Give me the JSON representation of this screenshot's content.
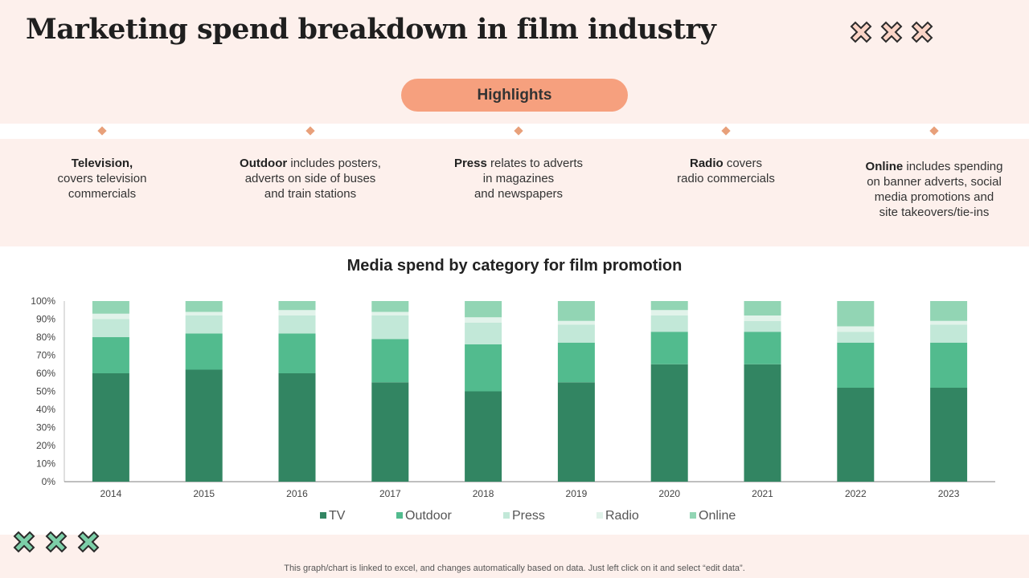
{
  "title": "Marketing spend breakdown in film industry",
  "highlights_label": "Highlights",
  "highlights": [
    {
      "bold": "Television,",
      "text": "covers television commercials",
      "lines": [
        "covers television",
        "commercials"
      ]
    },
    {
      "bold": "Outdoor",
      "text": "includes posters, adverts on side of buses and train stations",
      "lines": [
        "adverts on side of buses",
        "and train stations"
      ],
      "inline": " includes posters,"
    },
    {
      "bold": "Press",
      "inline": " relates to adverts",
      "lines": [
        "in magazines",
        "and newspapers"
      ]
    },
    {
      "bold": "Radio",
      "inline": " covers",
      "lines": [
        "radio commercials"
      ]
    },
    {
      "bold": "Online",
      "inline": " includes spending",
      "lines": [
        "on banner adverts, social",
        "media promotions and",
        "site takeovers/tie-ins"
      ]
    }
  ],
  "colors": {
    "TV": "#328562",
    "Outdoor": "#52bb8e",
    "Press": "#c2e8d8",
    "Radio": "#e1f3ea",
    "Online": "#92d5b4",
    "accent": "#f6a07e",
    "band": "#fdf0ec"
  },
  "chart_data": {
    "type": "bar",
    "stacked": true,
    "title": "Media spend by category for film promotion",
    "categories": [
      "2014",
      "2015",
      "2016",
      "2017",
      "2018",
      "2019",
      "2020",
      "2021",
      "2022",
      "2023"
    ],
    "series": [
      {
        "name": "TV",
        "values": [
          60,
          62,
          60,
          55,
          50,
          55,
          65,
          65,
          52,
          52
        ]
      },
      {
        "name": "Outdoor",
        "values": [
          20,
          20,
          22,
          24,
          26,
          22,
          18,
          18,
          25,
          25
        ]
      },
      {
        "name": "Press",
        "values": [
          10,
          10,
          10,
          13,
          12,
          10,
          9,
          6,
          6,
          10
        ]
      },
      {
        "name": "Radio",
        "values": [
          3,
          2,
          3,
          2,
          3,
          2,
          3,
          3,
          3,
          2
        ]
      },
      {
        "name": "Online",
        "values": [
          7,
          6,
          5,
          6,
          9,
          11,
          5,
          8,
          14,
          11
        ]
      }
    ],
    "yticks": [
      "0%",
      "10%",
      "20%",
      "30%",
      "40%",
      "50%",
      "60%",
      "70%",
      "80%",
      "90%",
      "100%"
    ],
    "ylim": [
      0,
      100
    ],
    "legend_position": "bottom"
  },
  "footnote": "This graph/chart is linked to excel, and changes automatically based on data. Just left click on it and select “edit data”."
}
